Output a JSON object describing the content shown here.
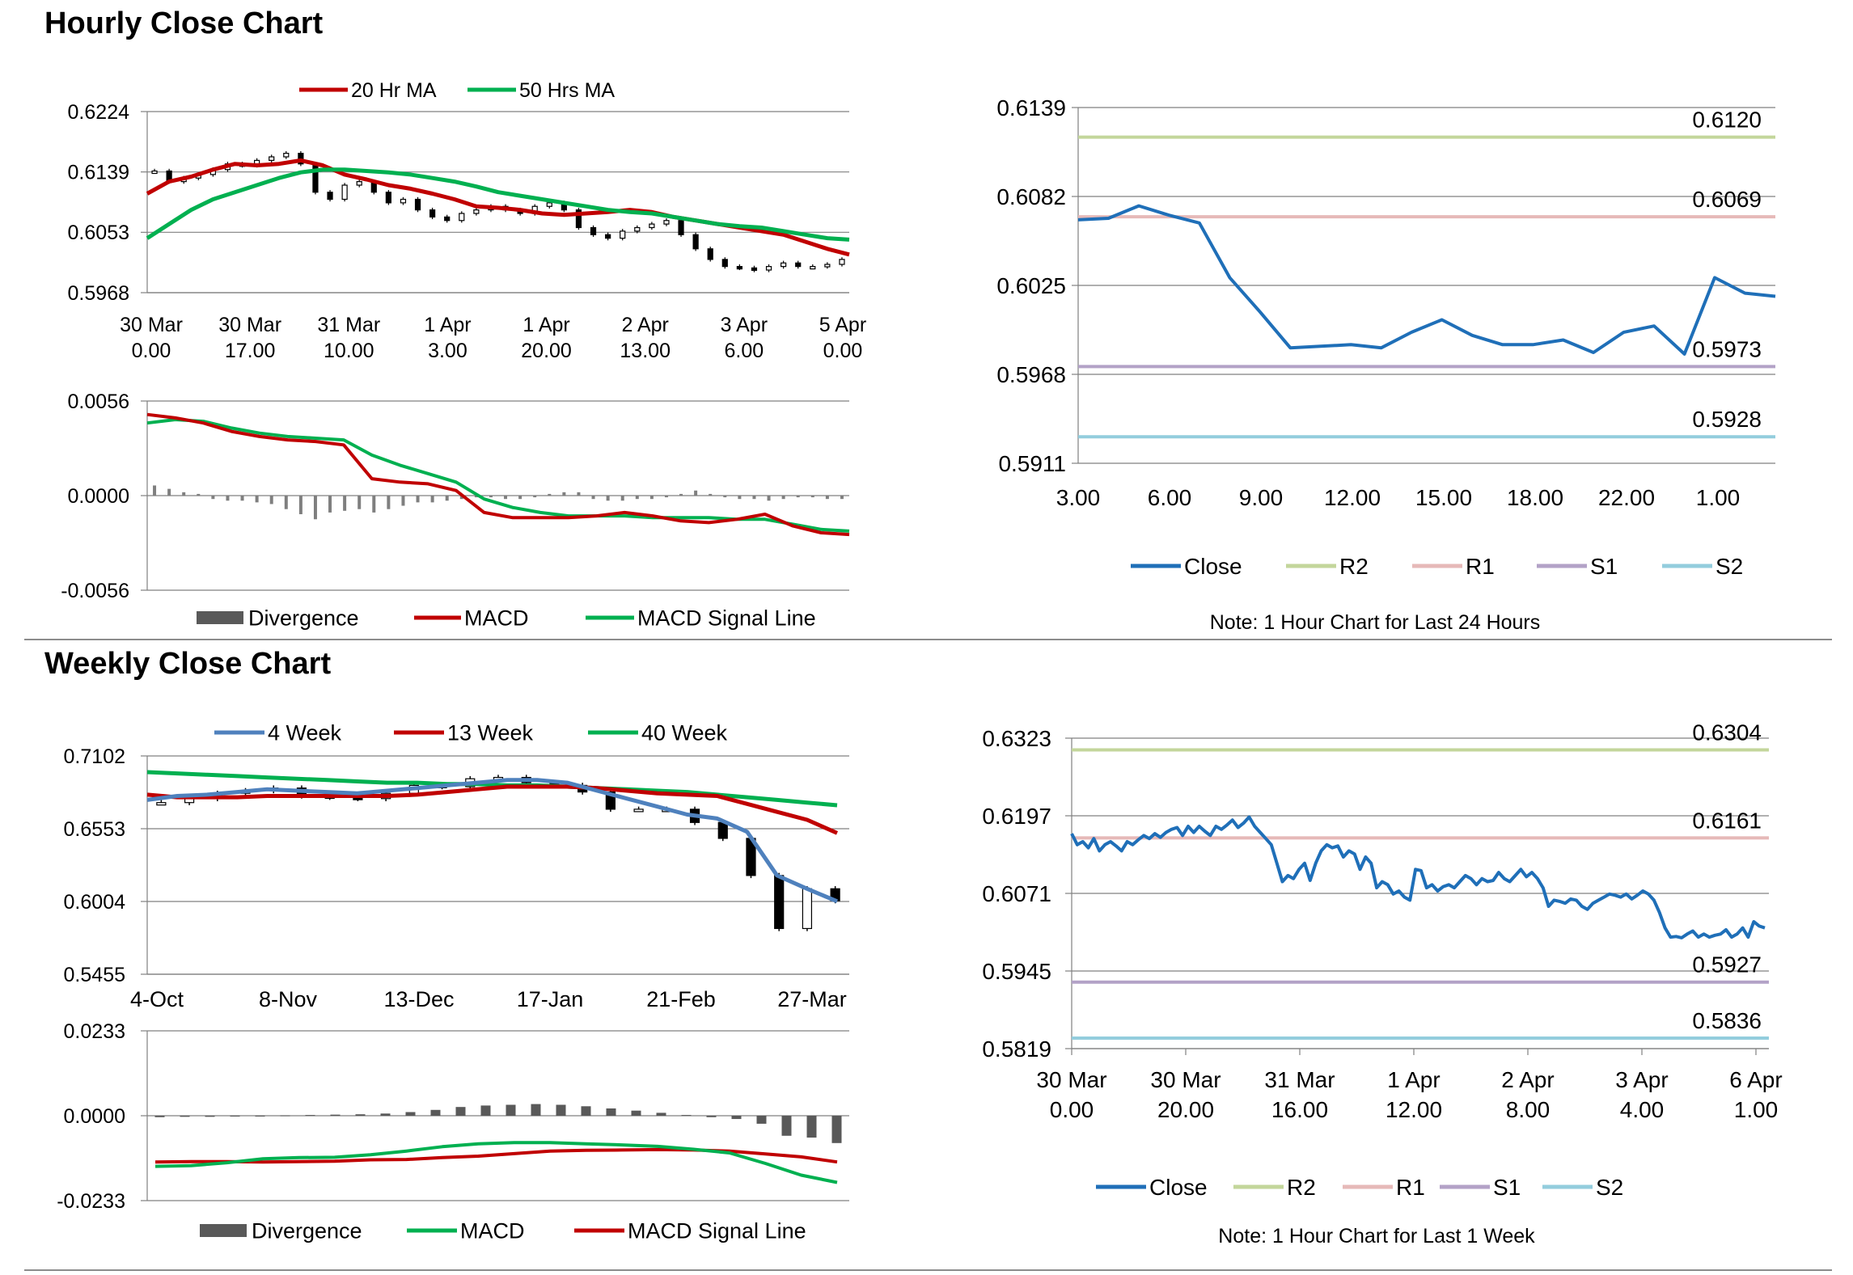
{
  "sections": {
    "hourly_title": "Hourly Close Chart",
    "weekly_title": "Weekly Close Chart"
  },
  "colors": {
    "red": "#c00000",
    "green": "#00b050",
    "blue_ma": "#4f81bd",
    "close": "#1f6fb8",
    "r2": "#c3d69b",
    "r1": "#e6b9b8",
    "s1": "#b3a2c7",
    "s2": "#93cddd",
    "grid": "#808080",
    "divergence": "#7f7f7f"
  },
  "chart_data": [
    {
      "id": "hourly_price",
      "type": "candlestick",
      "legend": [
        "20 Hr MA",
        "50 Hrs MA"
      ],
      "ylim": [
        0.5968,
        0.6224
      ],
      "yticks": [
        "0.6224",
        "0.6139",
        "0.6053",
        "0.5968"
      ],
      "xticks": [
        [
          "30 Mar",
          "0.00"
        ],
        [
          "30 Mar",
          "17.00"
        ],
        [
          "31 Mar",
          "10.00"
        ],
        [
          "1 Apr",
          "3.00"
        ],
        [
          "1 Apr",
          "20.00"
        ],
        [
          "2 Apr",
          "13.00"
        ],
        [
          "3 Apr",
          "6.00"
        ],
        [
          "5 Apr",
          "0.00"
        ]
      ],
      "ma20": [
        0.6108,
        0.6125,
        0.6132,
        0.6142,
        0.615,
        0.6148,
        0.615,
        0.6155,
        0.6148,
        0.6135,
        0.6128,
        0.612,
        0.6115,
        0.6108,
        0.61,
        0.609,
        0.6088,
        0.6085,
        0.608,
        0.6078,
        0.608,
        0.6082,
        0.6085,
        0.6082,
        0.6075,
        0.607,
        0.6065,
        0.606,
        0.6055,
        0.605,
        0.604,
        0.603,
        0.6022
      ],
      "ma50": [
        0.6045,
        0.6065,
        0.6085,
        0.61,
        0.611,
        0.612,
        0.613,
        0.6138,
        0.6142,
        0.6142,
        0.614,
        0.6138,
        0.6135,
        0.613,
        0.6125,
        0.6118,
        0.611,
        0.6105,
        0.61,
        0.6095,
        0.609,
        0.6085,
        0.6082,
        0.608,
        0.6075,
        0.607,
        0.6065,
        0.6062,
        0.606,
        0.6055,
        0.605,
        0.6045,
        0.6043
      ],
      "candles": [
        0.614,
        0.6125,
        0.613,
        0.6135,
        0.6142,
        0.615,
        0.6148,
        0.6155,
        0.616,
        0.6165,
        0.615,
        0.611,
        0.61,
        0.612,
        0.6125,
        0.611,
        0.6095,
        0.61,
        0.6085,
        0.6075,
        0.607,
        0.608,
        0.6085,
        0.609,
        0.6085,
        0.608,
        0.609,
        0.6095,
        0.6085,
        0.606,
        0.605,
        0.6045,
        0.6055,
        0.606,
        0.6065,
        0.607,
        0.605,
        0.603,
        0.6015,
        0.6005,
        0.6003,
        0.6,
        0.6005,
        0.601,
        0.6005,
        0.6005,
        0.6008,
        0.6015
      ]
    },
    {
      "id": "hourly_macd",
      "type": "line+bar",
      "legend": [
        "Divergence",
        "MACD",
        "MACD Signal Line"
      ],
      "ylim": [
        -0.0056,
        0.0056
      ],
      "yticks": [
        "0.0056",
        "0.0000",
        "-0.0056"
      ],
      "macd": [
        0.0048,
        0.0046,
        0.0043,
        0.0038,
        0.0035,
        0.0033,
        0.0032,
        0.003,
        0.001,
        0.0008,
        0.0007,
        0.0003,
        -0.001,
        -0.0013,
        -0.0013,
        -0.0013,
        -0.0012,
        -0.001,
        -0.0012,
        -0.0015,
        -0.0016,
        -0.0014,
        -0.0011,
        -0.0018,
        -0.0022,
        -0.0023
      ],
      "signal": [
        0.0043,
        0.0045,
        0.0044,
        0.004,
        0.0037,
        0.0035,
        0.0034,
        0.0033,
        0.0024,
        0.0018,
        0.0013,
        0.0008,
        -0.0002,
        -0.0007,
        -0.001,
        -0.0012,
        -0.0012,
        -0.0012,
        -0.0013,
        -0.0013,
        -0.0013,
        -0.0014,
        -0.0014,
        -0.0017,
        -0.002,
        -0.0021
      ],
      "divergence": [
        0.0006,
        0.0004,
        0.0002,
        0.0001,
        -0.0002,
        -0.0003,
        -0.0003,
        -0.0004,
        -0.0005,
        -0.0008,
        -0.0011,
        -0.0014,
        -0.001,
        -0.0009,
        -0.0008,
        -0.001,
        -0.0008,
        -0.0006,
        -0.0004,
        -0.0004,
        -0.0003,
        -0.0002,
        -0.0001,
        -0.0001,
        -0.0002,
        -0.0002,
        -0.0001,
        0.0001,
        0.0002,
        0.0002,
        -0.0002,
        -0.0003,
        -0.0003,
        -0.0002,
        -0.0002,
        -0.0001,
        0.0001,
        0.0003,
        0.0001,
        -0.0001,
        -0.0002,
        -0.0002,
        -0.0003,
        -0.0002,
        -0.0001,
        -0.0001,
        -0.0002,
        -0.0002
      ]
    },
    {
      "id": "hourly_close_24h",
      "type": "line",
      "legend": [
        "Close",
        "R2",
        "R1",
        "S1",
        "S2"
      ],
      "ylim": [
        0.5911,
        0.6139
      ],
      "yticks": [
        "0.6139",
        "0.6082",
        "0.6025",
        "0.5968",
        "0.5911"
      ],
      "xticks": [
        "3.00",
        "6.00",
        "9.00",
        "12.00",
        "15.00",
        "18.00",
        "22.00",
        "1.00"
      ],
      "close": [
        0.6067,
        0.6068,
        0.6076,
        0.607,
        0.6065,
        0.603,
        0.6008,
        0.5985,
        0.5986,
        0.5987,
        0.5985,
        0.5995,
        0.6003,
        0.5993,
        0.5987,
        0.5987,
        0.599,
        0.5982,
        0.5995,
        0.5999,
        0.5981,
        0.603,
        0.602,
        0.6018
      ],
      "levels": {
        "R2": 0.612,
        "R1": 0.6069,
        "S1": 0.5973,
        "S2": 0.5928
      },
      "level_labels": {
        "R2": "0.6120",
        "R1": "0.6069",
        "S1": "0.5973",
        "S2": "0.5928"
      },
      "note": "Note: 1 Hour Chart for Last 24 Hours"
    },
    {
      "id": "weekly_price",
      "type": "candlestick",
      "legend": [
        "4 Week",
        "13 Week",
        "40 Week"
      ],
      "ylim": [
        0.5455,
        0.7102
      ],
      "yticks": [
        "0.7102",
        "0.6553",
        "0.6004",
        "0.5455"
      ],
      "xticks": [
        "4-Oct",
        "8-Nov",
        "13-Dec",
        "17-Jan",
        "21-Feb",
        "27-Mar"
      ],
      "w4": [
        0.677,
        0.68,
        0.681,
        0.683,
        0.685,
        0.684,
        0.683,
        0.682,
        0.684,
        0.686,
        0.688,
        0.69,
        0.692,
        0.692,
        0.69,
        0.684,
        0.678,
        0.672,
        0.666,
        0.663,
        0.653,
        0.62,
        0.61,
        0.6005
      ],
      "w13": [
        0.681,
        0.679,
        0.679,
        0.679,
        0.68,
        0.68,
        0.68,
        0.68,
        0.68,
        0.681,
        0.683,
        0.685,
        0.687,
        0.687,
        0.687,
        0.686,
        0.684,
        0.682,
        0.681,
        0.68,
        0.674,
        0.668,
        0.662,
        0.652
      ],
      "w40": [
        0.698,
        0.697,
        0.696,
        0.695,
        0.694,
        0.693,
        0.692,
        0.691,
        0.69,
        0.69,
        0.689,
        0.689,
        0.688,
        0.688,
        0.687,
        0.686,
        0.685,
        0.684,
        0.683,
        0.681,
        0.679,
        0.677,
        0.675,
        0.673
      ],
      "candles": [
        0.675,
        0.678,
        0.682,
        0.684,
        0.686,
        0.68,
        0.679,
        0.678,
        0.682,
        0.688,
        0.687,
        0.693,
        0.694,
        0.69,
        0.688,
        0.683,
        0.67,
        0.67,
        0.67,
        0.66,
        0.648,
        0.62,
        0.58,
        0.61,
        0.601
      ]
    },
    {
      "id": "weekly_macd",
      "type": "line+bar",
      "legend": [
        "Divergence",
        "MACD",
        "MACD Signal Line"
      ],
      "ylim": [
        -0.0233,
        0.0233
      ],
      "yticks": [
        "0.0233",
        "0.0000",
        "-0.0233"
      ],
      "macd": [
        -0.0139,
        -0.0137,
        -0.0129,
        -0.0118,
        -0.0115,
        -0.0114,
        -0.0107,
        -0.0097,
        -0.0085,
        -0.0077,
        -0.0074,
        -0.0074,
        -0.0077,
        -0.008,
        -0.0084,
        -0.0092,
        -0.0102,
        -0.0131,
        -0.0163,
        -0.0183
      ],
      "signal": [
        -0.0127,
        -0.0126,
        -0.0126,
        -0.0127,
        -0.0126,
        -0.0125,
        -0.0121,
        -0.012,
        -0.0115,
        -0.0111,
        -0.0104,
        -0.0097,
        -0.0095,
        -0.0094,
        -0.0093,
        -0.0094,
        -0.0097,
        -0.0105,
        -0.0113,
        -0.0127
      ],
      "divergence": [
        -0.0004,
        -0.0003,
        -0.0003,
        -0.0002,
        -0.0001,
        0.0001,
        0.0002,
        0.0003,
        0.0004,
        0.0006,
        0.001,
        0.0016,
        0.0024,
        0.0028,
        0.003,
        0.0032,
        0.003,
        0.0026,
        0.002,
        0.0014,
        0.0008,
        0.0002,
        -0.0004,
        -0.0009,
        -0.0022,
        -0.0055,
        -0.006,
        -0.0075
      ]
    },
    {
      "id": "weekly_close_1w",
      "type": "line",
      "legend": [
        "Close",
        "R2",
        "R1",
        "S1",
        "S2"
      ],
      "ylim": [
        0.5819,
        0.6323
      ],
      "yticks": [
        "0.6323",
        "0.6197",
        "0.6071",
        "0.5945",
        "0.5819"
      ],
      "xticks": [
        [
          "30 Mar",
          "0.00"
        ],
        [
          "30 Mar",
          "20.00"
        ],
        [
          "31 Mar",
          "16.00"
        ],
        [
          "1 Apr",
          "12.00"
        ],
        [
          "2 Apr",
          "8.00"
        ],
        [
          "3 Apr",
          "4.00"
        ],
        [
          "6 Apr",
          "1.00"
        ]
      ],
      "close": [
        0.6168,
        0.615,
        0.6155,
        0.6145,
        0.616,
        0.614,
        0.615,
        0.6155,
        0.6148,
        0.614,
        0.6155,
        0.615,
        0.6158,
        0.6165,
        0.616,
        0.6168,
        0.6162,
        0.617,
        0.6175,
        0.6178,
        0.6165,
        0.618,
        0.617,
        0.618,
        0.6172,
        0.6165,
        0.618,
        0.6175,
        0.6182,
        0.619,
        0.6178,
        0.6185,
        0.6195,
        0.618,
        0.617,
        0.616,
        0.615,
        0.612,
        0.609,
        0.61,
        0.6095,
        0.611,
        0.612,
        0.6092,
        0.612,
        0.614,
        0.615,
        0.6145,
        0.6148,
        0.613,
        0.614,
        0.6135,
        0.611,
        0.613,
        0.612,
        0.608,
        0.609,
        0.6085,
        0.607,
        0.6075,
        0.6065,
        0.606,
        0.611,
        0.6108,
        0.608,
        0.6085,
        0.6075,
        0.6082,
        0.6085,
        0.608,
        0.609,
        0.61,
        0.6095,
        0.6085,
        0.6095,
        0.609,
        0.6092,
        0.6105,
        0.6095,
        0.609,
        0.61,
        0.611,
        0.6098,
        0.6105,
        0.6095,
        0.608,
        0.605,
        0.606,
        0.6058,
        0.6055,
        0.6062,
        0.606,
        0.605,
        0.6045,
        0.6055,
        0.606,
        0.6065,
        0.607,
        0.6068,
        0.6065,
        0.607,
        0.6062,
        0.6068,
        0.6075,
        0.607,
        0.606,
        0.604,
        0.6015,
        0.6,
        0.6001,
        0.5999,
        0.6005,
        0.601,
        0.6,
        0.6005,
        0.6,
        0.6003,
        0.6005,
        0.6012,
        0.6,
        0.6005,
        0.6015,
        0.6,
        0.6025,
        0.6018,
        0.6015
      ],
      "levels": {
        "R2": 0.6304,
        "R1": 0.6161,
        "S1": 0.5927,
        "S2": 0.5836
      },
      "level_labels": {
        "R2": "0.6304",
        "R1": "0.6161",
        "S1": "0.5927",
        "S2": "0.5836"
      },
      "note": "Note: 1 Hour Chart for Last 1 Week"
    }
  ]
}
